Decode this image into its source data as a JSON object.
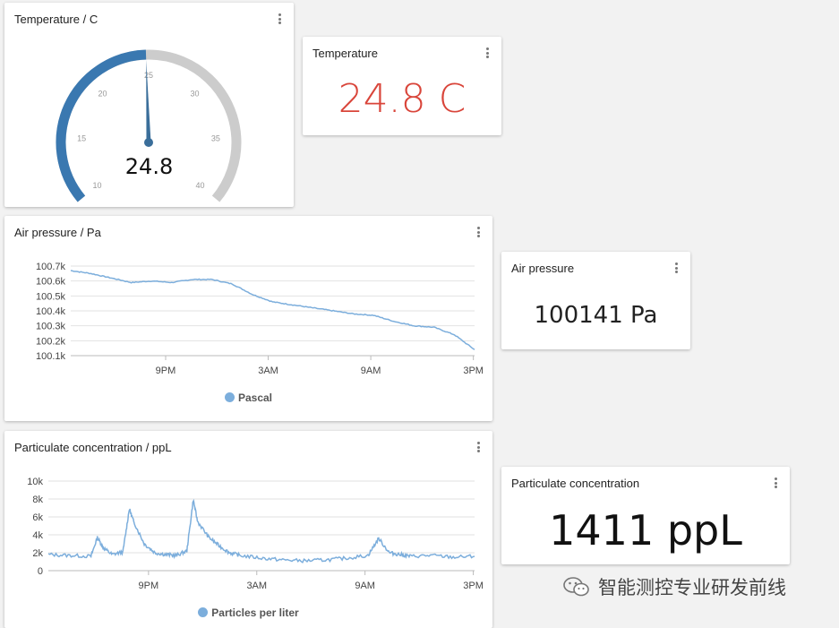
{
  "gauge_card": {
    "title": "Temperature / C",
    "value": "24.8",
    "reading": 24.8,
    "min": 10,
    "max": 40,
    "ticks": [
      "10",
      "15",
      "20",
      "25",
      "30",
      "35",
      "40"
    ],
    "colors": {
      "fill": "#3a78b0",
      "track": "#cccccc",
      "needle": "#3a6e9a"
    }
  },
  "temp_value_card": {
    "title": "Temperature",
    "value": "24.8 C",
    "color": "#d9453a"
  },
  "air_chart_card": {
    "title": "Air pressure / Pa"
  },
  "air_value_card": {
    "title": "Air pressure",
    "value": "100141 Pa"
  },
  "pm_chart_card": {
    "title": "Particulate concentration / ppL"
  },
  "pm_value_card": {
    "title": "Particulate concentration",
    "value": "1411 ppL"
  },
  "watermark": {
    "text": "智能测控专业研发前线",
    "icon": "wechat-icon"
  },
  "chart_data": [
    {
      "type": "line",
      "xticks": [
        "9PM",
        "3AM",
        "9AM",
        "3PM"
      ],
      "yticks": [
        "100.7k",
        "100.6k",
        "100.5k",
        "100.4k",
        "100.3k",
        "100.2k",
        "100.1k"
      ],
      "ylim": [
        100100,
        100700
      ],
      "xlim": [
        0,
        20
      ],
      "xtick_positions": [
        5.5,
        11.5,
        17.5,
        23.5
      ],
      "grid": true,
      "legend": "bottom",
      "color": "#7caedc",
      "series": [
        {
          "name": "Pascal",
          "x": [
            0,
            1,
            2,
            3,
            4,
            5,
            6,
            7,
            8,
            9,
            10,
            11,
            12,
            13,
            14,
            15,
            16,
            17,
            18,
            19,
            20
          ],
          "values": [
            100670,
            100650,
            100620,
            100590,
            100600,
            100590,
            100610,
            100610,
            100580,
            100510,
            100460,
            100440,
            100420,
            100400,
            100380,
            100370,
            100330,
            100300,
            100290,
            100240,
            100140
          ]
        }
      ]
    },
    {
      "type": "line",
      "xticks": [
        "9PM",
        "3AM",
        "9AM",
        "3PM"
      ],
      "yticks": [
        "10k",
        "8k",
        "6k",
        "4k",
        "2k",
        "0"
      ],
      "ylim": [
        0,
        10000
      ],
      "xlim": [
        0,
        20
      ],
      "xtick_positions": [
        5.5,
        11.5,
        17.5,
        23.5
      ],
      "grid": true,
      "legend": "bottom",
      "color": "#7caedc",
      "series": [
        {
          "name": "Particles per liter",
          "x": [
            0,
            1,
            2,
            2.3,
            2.6,
            3,
            3.5,
            3.8,
            4,
            4.5,
            5,
            5.5,
            6,
            6.5,
            6.8,
            7,
            7.5,
            8,
            8.5,
            9,
            10,
            11,
            12,
            13,
            14,
            15,
            15.5,
            16,
            16.5,
            17,
            18,
            19,
            20
          ],
          "values": [
            1800,
            1700,
            1600,
            3700,
            2500,
            1800,
            2100,
            6900,
            5500,
            3000,
            2000,
            1800,
            1700,
            2200,
            7900,
            5500,
            3800,
            2800,
            2000,
            1700,
            1400,
            1200,
            1100,
            1200,
            1400,
            1700,
            3600,
            2000,
            1800,
            1600,
            1700,
            1500,
            1600
          ]
        }
      ]
    }
  ]
}
